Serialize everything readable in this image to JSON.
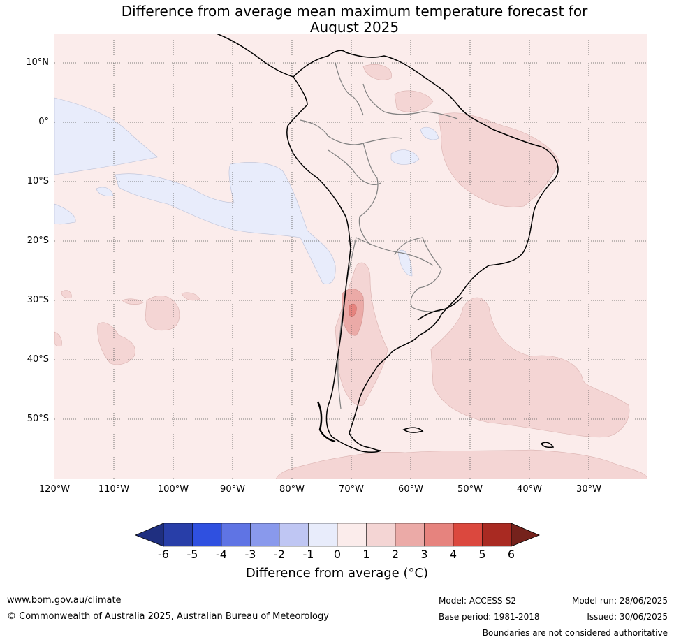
{
  "title": {
    "line1": "Difference from average mean maximum temperature forecast for",
    "line2": "August 2025"
  },
  "map": {
    "lat_labels": [
      "10°N",
      "0°",
      "10°S",
      "20°S",
      "30°S",
      "40°S",
      "50°S"
    ],
    "lon_labels": [
      "120°W",
      "110°W",
      "100°W",
      "90°W",
      "80°W",
      "70°W",
      "60°W",
      "50°W",
      "40°W",
      "30°W"
    ],
    "colors": {
      "ocean_base": "#fbeceb",
      "neg1_0": "#e8ecfb",
      "pos1_2": "#f4d5d4",
      "pos2_3": "#ebaaa7",
      "pos3_4": "#e6837e",
      "coast": "#000000",
      "border": "#808080"
    }
  },
  "colorbar": {
    "ticks": [
      "-6",
      "-5",
      "-4",
      "-3",
      "-2",
      "-1",
      "0",
      "1",
      "2",
      "3",
      "4",
      "5",
      "6"
    ],
    "colors": [
      "#283ea8",
      "#2f50e0",
      "#5f74e4",
      "#8999ec",
      "#bfc6f3",
      "#e8ecfb",
      "#fbeceb",
      "#f4d5d4",
      "#ebaaa7",
      "#e6837e",
      "#db483e",
      "#a92a22"
    ],
    "under_color": "#1f2f80",
    "over_color": "#75221c",
    "label": "Difference from average (°C)"
  },
  "footer": {
    "website": "www.bom.gov.au/climate",
    "copyright": "© Commonwealth of Australia 2025, Australian Bureau of Meteorology",
    "model": "Model: ACCESS-S2",
    "base_period": "Base period: 1981-2018",
    "model_run": "Model run: 28/06/2025",
    "issued": "Issued: 30/06/2025",
    "disclaimer": "Boundaries are not considered authoritative"
  }
}
